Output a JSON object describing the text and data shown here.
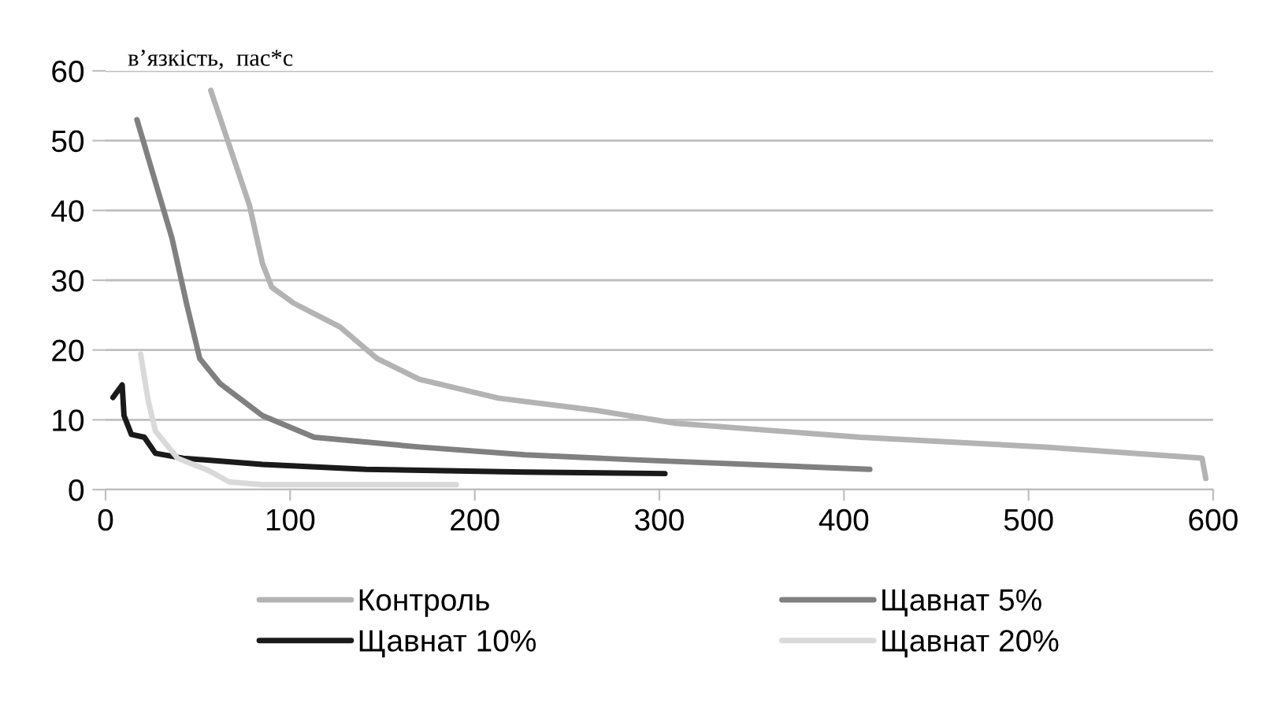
{
  "chart_data": {
    "type": "line",
    "ylabel": "в’язкість,  пас*с",
    "xlim": [
      0,
      600
    ],
    "xticks": [
      0,
      100,
      200,
      300,
      400,
      500,
      600
    ],
    "ylim": [
      0,
      60
    ],
    "yticks": [
      0,
      10,
      20,
      30,
      40,
      50,
      60
    ],
    "grid": "y",
    "legend": "bottom",
    "marker": "none",
    "line_style": "solid",
    "series": [
      {
        "name": "Контроль",
        "color": "#b3b3b3",
        "x": [
          57,
          78,
          85,
          90,
          102,
          127,
          147,
          170,
          213,
          267,
          309,
          409,
          509,
          594,
          596
        ],
        "values": [
          57.2,
          40.7,
          32.4,
          29,
          26.7,
          23.3,
          18.8,
          15.8,
          13.1,
          11.3,
          9.5,
          7.5,
          6.1,
          4.5,
          1.6
        ]
      },
      {
        "name": "Щавнат 5%",
        "color": "#808080",
        "x": [
          17,
          36,
          44,
          51,
          62,
          85,
          113,
          170,
          227,
          284,
          414
        ],
        "values": [
          53,
          36,
          26.5,
          18.8,
          15.2,
          10.6,
          7.5,
          6.1,
          5,
          4.3,
          2.9
        ]
      },
      {
        "name": "Щавнат 10%",
        "color": "#1a1a1a",
        "x": [
          4,
          9,
          10,
          14,
          21,
          27,
          42,
          85,
          141,
          227,
          303
        ],
        "values": [
          13.2,
          15,
          10.6,
          7.9,
          7.5,
          5.2,
          4.5,
          3.6,
          2.9,
          2.5,
          2.3
        ]
      },
      {
        "name": "Щавнат 20%",
        "color": "#d9d9d9",
        "x": [
          19,
          23,
          27,
          39,
          56,
          67,
          85,
          190
        ],
        "values": [
          19.4,
          12.9,
          8.4,
          4.5,
          2.7,
          1.1,
          0.7,
          0.7
        ]
      }
    ]
  }
}
